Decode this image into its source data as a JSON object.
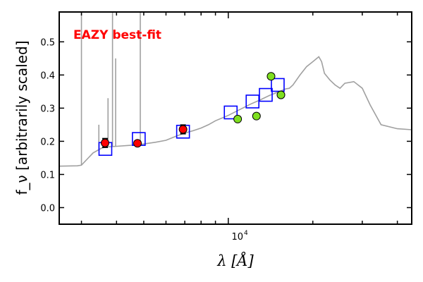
{
  "chart_data": {
    "type": "line",
    "title": "EAZY best-fit",
    "title_color": "#ff0000",
    "xlabel": "λ [Å]",
    "ylabel": "f_ν [arbitrarily scaled]",
    "xscale": "log",
    "xlim": [
      2500,
      45000
    ],
    "ylim": [
      -0.05,
      0.59
    ],
    "y_ticks": [
      0.0,
      0.1,
      0.2,
      0.3,
      0.4,
      0.5
    ],
    "y_tick_labels": [
      "0.0",
      "0.1",
      "0.2",
      "0.3",
      "0.4",
      "0.5"
    ],
    "x_tick_label": "10",
    "x_tick_label_exponent": "4",
    "grid": false,
    "series": [
      {
        "kind": "template",
        "color": "#a0a0a0",
        "x": [
          2500,
          2900,
          3000,
          3300,
          3550,
          3700,
          4000,
          4500,
          5000,
          5500,
          6000,
          6500,
          7000,
          7500,
          8000,
          8500,
          9000,
          10000,
          11000,
          12000,
          13000,
          14000,
          15000,
          16000,
          16500,
          17000,
          18000,
          19000,
          20000,
          21000,
          21500,
          22000,
          23000,
          24000,
          25000,
          26000,
          28000,
          30000,
          32000,
          35000,
          40000,
          45000
        ],
        "y": [
          0.125,
          0.126,
          0.128,
          0.165,
          0.18,
          0.183,
          0.185,
          0.188,
          0.192,
          0.197,
          0.203,
          0.215,
          0.225,
          0.232,
          0.24,
          0.25,
          0.262,
          0.278,
          0.296,
          0.312,
          0.325,
          0.338,
          0.348,
          0.358,
          0.36,
          0.37,
          0.4,
          0.425,
          0.44,
          0.455,
          0.44,
          0.405,
          0.385,
          0.37,
          0.36,
          0.375,
          0.38,
          0.36,
          0.31,
          0.25,
          0.238,
          0.235
        ],
        "emission_lines": [
          {
            "x": 3000,
            "y": 0.59
          },
          {
            "x": 3460,
            "y": 0.25
          },
          {
            "x": 3730,
            "y": 0.33
          },
          {
            "x": 3870,
            "y": 0.59
          },
          {
            "x": 3970,
            "y": 0.45
          },
          {
            "x": 4860,
            "y": 0.59
          }
        ]
      },
      {
        "kind": "model_fluxes",
        "marker": "open-square",
        "color": "#0000ff",
        "x": [
          3650,
          4800,
          6900,
          10200,
          12200,
          13600,
          15000
        ],
        "y": [
          0.177,
          0.207,
          0.229,
          0.287,
          0.32,
          0.34,
          0.37
        ]
      },
      {
        "kind": "observed",
        "marker": "circle",
        "color": "#ff0000",
        "x": [
          3640,
          4750,
          6900
        ],
        "y": [
          0.195,
          0.194,
          0.236
        ],
        "yerr": [
          0.013,
          0.006,
          0.013
        ]
      },
      {
        "kind": "observed",
        "marker": "circle",
        "color": "#7fdf1f",
        "x": [
          10800,
          12600,
          14200,
          15400
        ],
        "y": [
          0.267,
          0.276,
          0.396,
          0.34
        ]
      }
    ]
  }
}
